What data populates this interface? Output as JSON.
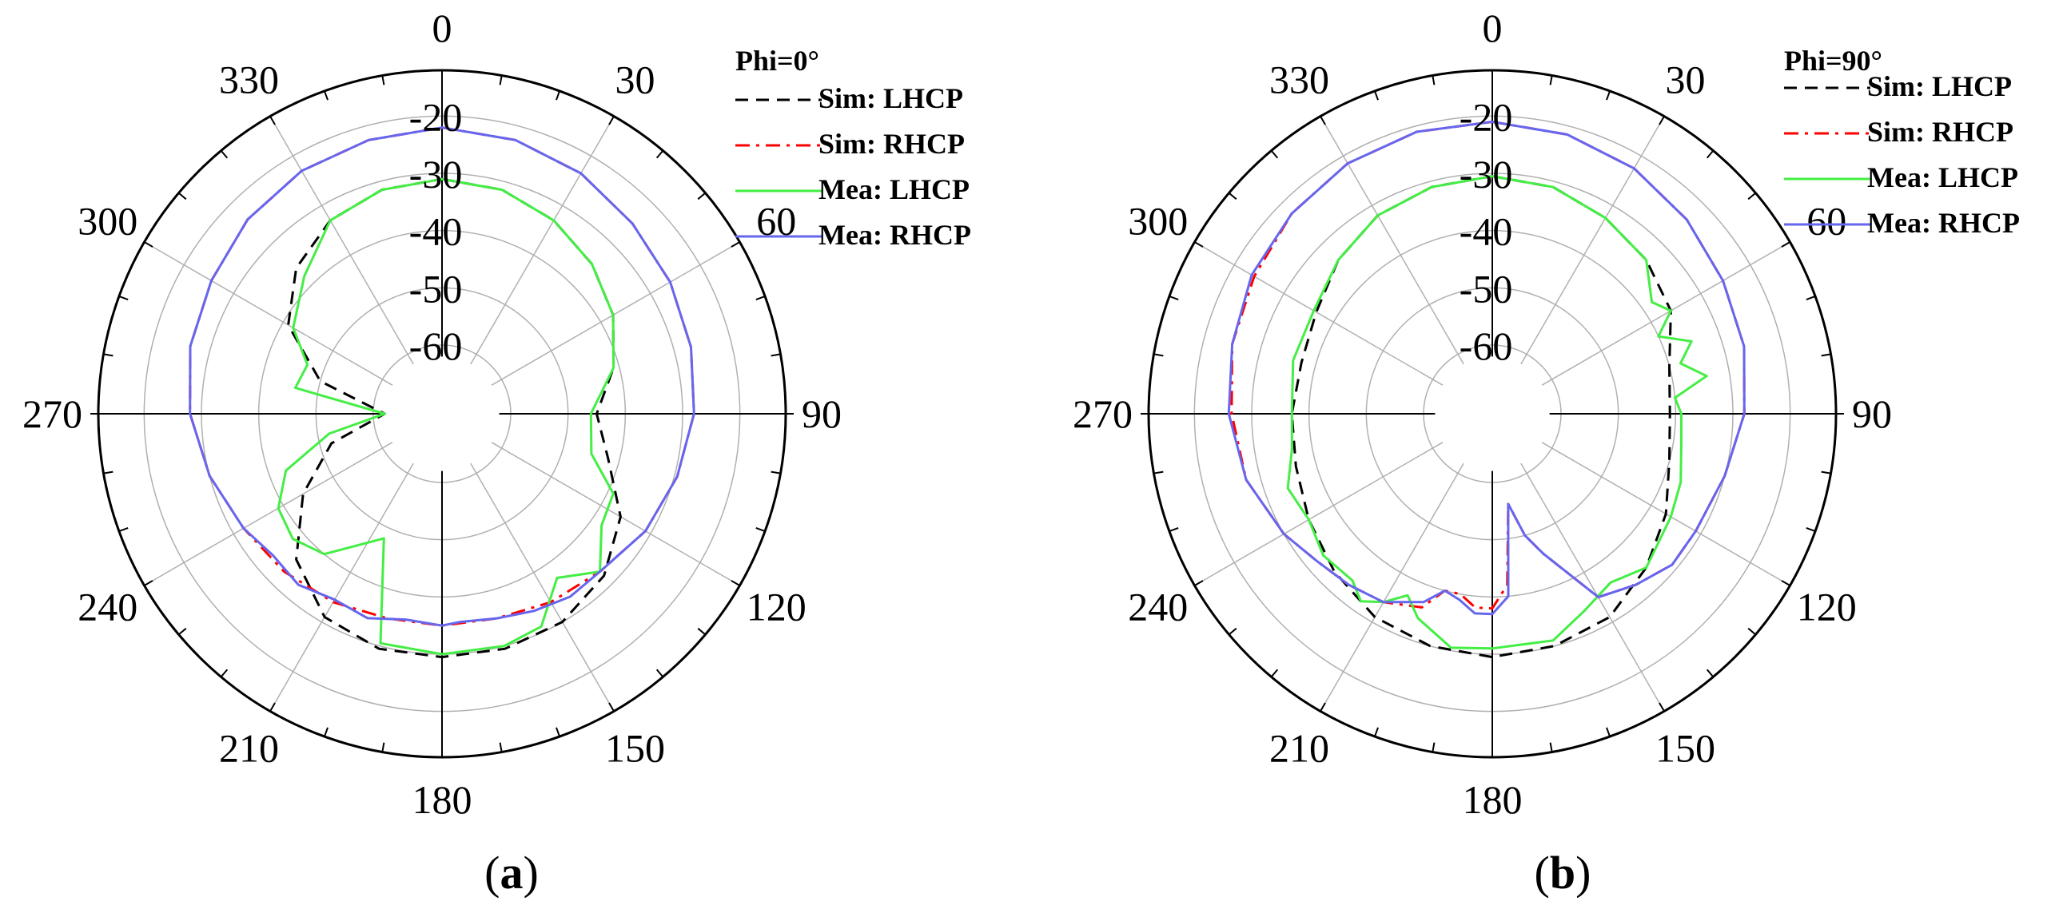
{
  "chart_data": [
    {
      "type": "polar-line",
      "caption_letter": "a",
      "legend_title": "Phi=0°",
      "angle_ticks": [
        "0",
        "30",
        "60",
        "90",
        "120",
        "150",
        "180",
        "210",
        "240",
        "270",
        "300",
        "330"
      ],
      "radial_ticks": [
        -20,
        -30,
        -40,
        -50,
        -60
      ],
      "radial_range": [
        -72,
        -12
      ],
      "angle_direction": "clockwise",
      "zero_at": "top",
      "grid": true,
      "legend_placement": "top-right",
      "series": [
        {
          "name": "Sim: LHCP",
          "color": "#000000",
          "dash": "dashed",
          "angles": [
            0,
            15,
            30,
            45,
            60,
            75,
            90,
            105,
            120,
            135,
            150,
            165,
            180,
            195,
            210,
            225,
            240,
            255,
            270,
            285,
            300,
            315,
            330,
            345
          ],
          "values": [
            -31,
            -31.5,
            -33,
            -35,
            -37.5,
            -41,
            -45,
            -42,
            -36,
            -32,
            -30,
            -29.5,
            -29.5,
            -29.5,
            -31,
            -36,
            -44,
            -52,
            -62,
            -50,
            -41,
            -36,
            -33,
            -31.5
          ]
        },
        {
          "name": "Sim: RHCP",
          "color": "#ff0000",
          "dash": "dashdot",
          "angles": [
            0,
            15,
            30,
            45,
            60,
            75,
            90,
            105,
            120,
            135,
            150,
            165,
            180,
            195,
            210,
            225,
            240,
            255,
            270,
            285,
            300,
            315,
            330,
            345
          ],
          "values": [
            -22,
            -22.5,
            -23.5,
            -25,
            -26,
            -27,
            -28,
            -29.5,
            -31,
            -33,
            -34,
            -35,
            -35,
            -35,
            -34,
            -33,
            -32,
            -30,
            -28,
            -26.5,
            -25.5,
            -24,
            -23,
            -22.5
          ]
        },
        {
          "name": "Mea: LHCP",
          "color": "#44ee44",
          "dash": "solid",
          "angles": [
            0,
            15,
            30,
            45,
            60,
            75,
            90,
            105,
            115,
            125,
            135,
            145,
            155,
            165,
            180,
            195,
            205,
            210,
            220,
            230,
            240,
            250,
            260,
            270,
            280,
            290,
            300,
            315,
            330,
            345
          ],
          "values": [
            -31,
            -31.5,
            -33,
            -35,
            -37.5,
            -41,
            -46,
            -45,
            -39,
            -38,
            -33,
            -37,
            -31,
            -30,
            -30,
            -30.5,
            -48,
            -46,
            -40,
            -38,
            -39,
            -43,
            -52,
            -62,
            -46,
            -47,
            -42,
            -38,
            -33,
            -31.5
          ]
        },
        {
          "name": "Mea: RHCP",
          "color": "#6666ee",
          "dash": "solid",
          "angles": [
            0,
            15,
            30,
            45,
            60,
            75,
            90,
            105,
            120,
            135,
            145,
            155,
            165,
            175,
            180,
            190,
            200,
            210,
            220,
            230,
            240,
            255,
            270,
            285,
            300,
            315,
            330,
            345
          ],
          "values": [
            -22,
            -22.5,
            -23.5,
            -25,
            -26,
            -27,
            -28,
            -29.5,
            -31,
            -33,
            -33,
            -34,
            -35,
            -35.5,
            -35,
            -35.5,
            -34,
            -34.5,
            -33,
            -33.5,
            -32,
            -30,
            -28,
            -26.5,
            -25.5,
            -24,
            -23,
            -22.5
          ]
        }
      ]
    },
    {
      "type": "polar-line",
      "caption_letter": "b",
      "legend_title": "Phi=90°",
      "angle_ticks": [
        "0",
        "30",
        "60",
        "90",
        "120",
        "150",
        "180",
        "210",
        "240",
        "270",
        "300",
        "330"
      ],
      "radial_ticks": [
        -20,
        -30,
        -40,
        -50,
        -60
      ],
      "radial_range": [
        -72,
        -12
      ],
      "angle_direction": "clockwise",
      "zero_at": "top",
      "grid": true,
      "legend_placement": "top-right",
      "series": [
        {
          "name": "Sim: LHCP",
          "color": "#000000",
          "dash": "dashed",
          "angles": [
            0,
            15,
            30,
            45,
            60,
            75,
            90,
            105,
            120,
            135,
            150,
            165,
            180,
            195,
            210,
            225,
            240,
            255,
            270,
            285,
            300,
            315,
            330,
            345
          ],
          "values": [
            -30.5,
            -31,
            -32.5,
            -34,
            -36,
            -40,
            -41,
            -40,
            -37,
            -34,
            -31,
            -30,
            -29.5,
            -30,
            -31,
            -33,
            -35,
            -36.5,
            -37,
            -37.5,
            -36.5,
            -34,
            -32,
            -31
          ]
        },
        {
          "name": "Sim: RHCP",
          "color": "#ff0000",
          "dash": "dashdot",
          "angles": [
            0,
            15,
            30,
            45,
            60,
            75,
            90,
            105,
            120,
            130,
            140,
            150,
            160,
            165,
            170,
            175,
            180,
            185,
            190,
            195,
            200,
            210,
            220,
            230,
            240,
            255,
            270,
            285,
            300,
            315,
            330,
            345
          ],
          "values": [
            -21,
            -21.5,
            -22.5,
            -24,
            -25.5,
            -26.5,
            -28,
            -30,
            -31,
            -31,
            -33,
            -35,
            -46,
            -50,
            -56,
            -42,
            -38,
            -38,
            -40,
            -40,
            -36,
            -34,
            -33,
            -32,
            -30,
            -27.5,
            -26.5,
            -25,
            -24,
            -22.5,
            -21.5,
            -21
          ]
        },
        {
          "name": "Mea: LHCP",
          "color": "#44ee44",
          "dash": "solid",
          "angles": [
            0,
            15,
            30,
            45,
            55,
            60,
            65,
            70,
            75,
            80,
            85,
            90,
            100,
            110,
            120,
            135,
            145,
            155,
            165,
            180,
            190,
            200,
            205,
            210,
            215,
            220,
            230,
            240,
            250,
            260,
            270,
            285,
            300,
            315,
            330,
            345
          ],
          "values": [
            -30.5,
            -31,
            -32.5,
            -34,
            -38,
            -36,
            -40,
            -35,
            -38,
            -34,
            -40,
            -39,
            -38.5,
            -37,
            -36,
            -34,
            -36,
            -34,
            -31,
            -31,
            -30.5,
            -34,
            -37,
            -34,
            -32,
            -34,
            -33.5,
            -35,
            -34,
            -36.5,
            -37,
            -36,
            -36,
            -34,
            -32,
            -31
          ]
        },
        {
          "name": "Mea: RHCP",
          "color": "#6666ee",
          "dash": "solid",
          "angles": [
            0,
            15,
            30,
            45,
            60,
            75,
            90,
            105,
            120,
            130,
            140,
            150,
            160,
            165,
            170,
            175,
            180,
            185,
            190,
            195,
            200,
            210,
            220,
            230,
            240,
            255,
            270,
            285,
            300,
            315,
            330,
            345
          ],
          "values": [
            -21,
            -21.5,
            -22.5,
            -24,
            -25.5,
            -26.5,
            -28,
            -30,
            -31,
            -31,
            -33,
            -35,
            -46,
            -50,
            -56,
            -40,
            -37,
            -37,
            -39,
            -40,
            -37,
            -34,
            -33,
            -32,
            -30,
            -27.5,
            -26,
            -25,
            -23.5,
            -22.5,
            -21.5,
            -21
          ]
        }
      ]
    }
  ]
}
